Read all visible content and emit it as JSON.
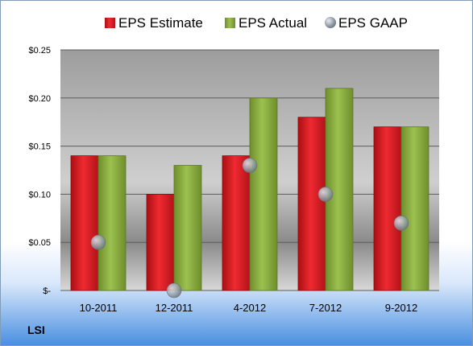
{
  "chart_data": {
    "type": "bar",
    "categories": [
      "10-2011",
      "12-2011",
      "4-2012",
      "7-2012",
      "9-2012"
    ],
    "series": [
      {
        "name": "EPS Estimate",
        "type": "bar",
        "color": "#d9141c",
        "values": [
          0.14,
          0.1,
          0.14,
          0.18,
          0.17
        ]
      },
      {
        "name": "EPS Actual",
        "type": "bar",
        "color": "#8aad3e",
        "values": [
          0.14,
          0.13,
          0.2,
          0.21,
          0.17
        ]
      },
      {
        "name": "EPS GAAP",
        "type": "scatter",
        "color": "#9aa3ad",
        "values": [
          0.05,
          0.0,
          0.13,
          0.1,
          0.07
        ]
      }
    ],
    "ylim": [
      0,
      0.25
    ],
    "yticks": [
      0,
      0.05,
      0.1,
      0.15,
      0.2,
      0.25
    ],
    "ytick_labels": [
      "$-",
      "$0.05",
      "$0.10",
      "$0.15",
      "$0.20",
      "$0.25"
    ],
    "grid": true,
    "legend_position": "top"
  },
  "company_label": "LSI"
}
